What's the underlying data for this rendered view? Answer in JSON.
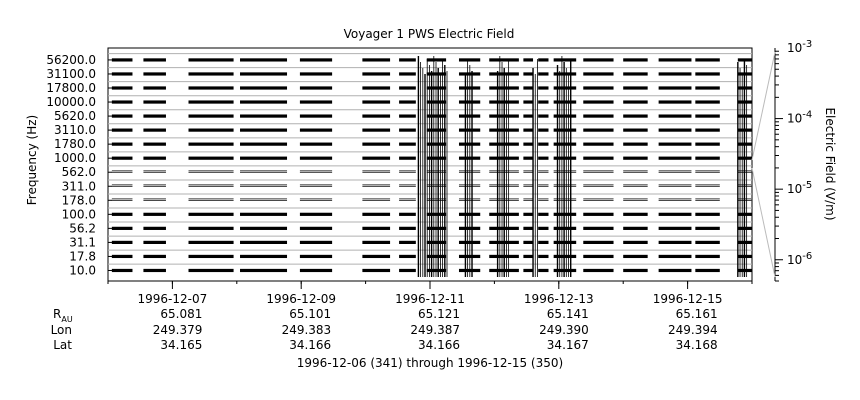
{
  "chart_data": {
    "type": "spectrogram-strip",
    "title": "Voyager 1 PWS Electric Field",
    "ylabel": "Frequency (Hz)",
    "right_label": "Electric Field (V/m)",
    "channels": [
      "10.0",
      "17.8",
      "31.1",
      "56.2",
      "100.0",
      "178.0",
      "311.0",
      "562.0",
      "1000.0",
      "1780.0",
      "3110.0",
      "5620.0",
      "10000.0",
      "17800.0",
      "31100.0",
      "56200.0"
    ],
    "x_range": [
      "1996-12-06T00:00",
      "1996-12-16T00:00"
    ],
    "x_ticks": [
      "1996-12-07",
      "1996-12-09",
      "1996-12-11",
      "1996-12-13",
      "1996-12-15"
    ],
    "right_axis": {
      "scale": "log",
      "range": [
        5e-07,
        0.001
      ],
      "ticks": [
        {
          "value": 1e-06,
          "base": "10",
          "exp": "-6"
        },
        {
          "value": 1e-05,
          "base": "10",
          "exp": "-5"
        },
        {
          "value": 0.0001,
          "base": "10",
          "exp": "-4"
        },
        {
          "value": 0.001,
          "base": "10",
          "exp": "-3"
        }
      ]
    },
    "data_segments_days": [
      [
        0.06,
        0.38
      ],
      [
        0.55,
        0.9
      ],
      [
        1.25,
        1.95
      ],
      [
        2.05,
        2.78
      ],
      [
        2.98,
        3.48
      ],
      [
        3.95,
        4.38
      ],
      [
        4.52,
        4.78
      ],
      [
        4.95,
        5.25
      ],
      [
        5.45,
        5.78
      ],
      [
        5.92,
        6.38
      ],
      [
        6.45,
        6.6
      ],
      [
        6.68,
        6.84
      ],
      [
        6.92,
        7.27
      ],
      [
        7.38,
        7.85
      ],
      [
        8.0,
        8.38
      ],
      [
        8.55,
        9.06
      ],
      [
        9.12,
        9.5
      ],
      [
        9.78,
        10.0
      ]
    ],
    "burst_intervals_days": [
      [
        4.82,
        5.28
      ],
      [
        5.55,
        5.68
      ],
      [
        6.05,
        6.25
      ],
      [
        6.6,
        6.68
      ],
      [
        6.98,
        7.2
      ],
      [
        9.78,
        9.95
      ]
    ],
    "ephemeris": {
      "labels": {
        "r": "R",
        "r_sub": "AU",
        "lon": "Lon",
        "lat": "Lat"
      },
      "columns": [
        {
          "r": "65.081",
          "lon": "249.379",
          "lat": "34.165"
        },
        {
          "r": "65.101",
          "lon": "249.383",
          "lat": "34.166"
        },
        {
          "r": "65.121",
          "lon": "249.387",
          "lat": "34.166"
        },
        {
          "r": "65.141",
          "lon": "249.390",
          "lat": "34.167"
        },
        {
          "r": "65.161",
          "lon": "249.394",
          "lat": "34.168"
        }
      ]
    },
    "date_range_caption": "1996-12-06 (341) through 1996-12-15 (350)"
  }
}
